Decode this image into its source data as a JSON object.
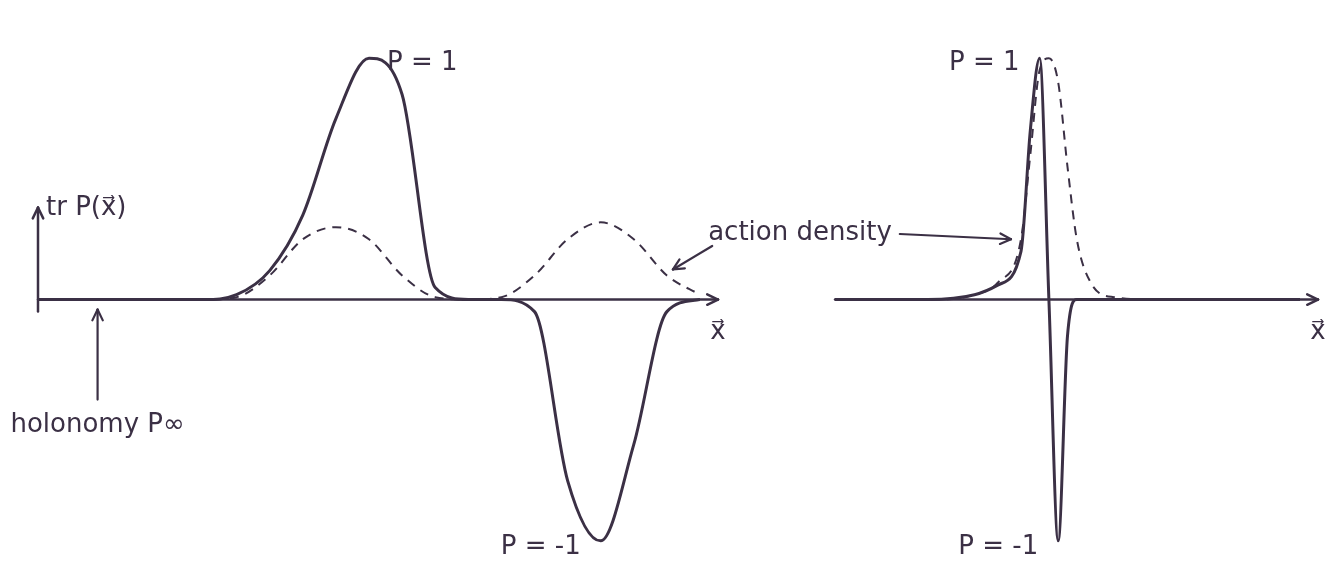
{
  "chart_data": [
    {
      "type": "line",
      "y_label": "tr P(x⃗)",
      "x_label": "x⃗",
      "xlim": [
        0,
        10
      ],
      "ylim": [
        -1.1,
        1.2
      ],
      "tick_labels": false,
      "grid": false,
      "x": [
        0,
        0.5,
        1,
        1.5,
        2,
        2.5,
        3,
        3.5,
        4,
        4.5,
        5,
        5.5,
        6,
        6.5,
        7,
        7.5,
        8,
        8.5,
        9,
        9.5,
        10
      ],
      "series": [
        {
          "color": "#3b3045",
          "line_style": "solid",
          "values": [
            0,
            0,
            0,
            0,
            0,
            0,
            0.02,
            0.12,
            0.35,
            0.75,
            1.0,
            0.85,
            0.05,
            0,
            0,
            -0.05,
            -0.75,
            -1.0,
            -0.6,
            -0.05,
            0
          ]
        },
        {
          "name": "action density",
          "color": "#3b3045",
          "line_style": "dashed",
          "values": [
            0,
            0,
            0,
            0,
            0,
            0,
            0.01,
            0.1,
            0.25,
            0.3,
            0.25,
            0.1,
            0.01,
            0,
            0.01,
            0.1,
            0.25,
            0.32,
            0.25,
            0.1,
            0.02
          ]
        }
      ],
      "annotations": [
        {
          "text": "P = 1",
          "x": 5,
          "y": 1.0
        },
        {
          "text": "P = -1",
          "x": 8.5,
          "y": -1.0
        },
        {
          "text": "holonomy P∞",
          "x": 0.9,
          "y": 0
        }
      ]
    },
    {
      "type": "line",
      "x_label": "x⃗",
      "xlim": [
        0,
        10
      ],
      "ylim": [
        -1.1,
        1.2
      ],
      "tick_labels": false,
      "grid": false,
      "x": [
        0,
        1,
        2,
        3,
        3.5,
        4,
        4.2,
        4.4,
        4.6,
        4.8,
        5.0,
        5.2,
        5.5,
        6,
        7,
        8,
        9,
        10
      ],
      "series": [
        {
          "color": "#3b3045",
          "line_style": "solid",
          "values": [
            0,
            0,
            0,
            0.02,
            0.06,
            0.2,
            0.7,
            1.0,
            0,
            -1.0,
            -0.15,
            0,
            0,
            0,
            0,
            0,
            0,
            0
          ]
        },
        {
          "name": "action density",
          "color": "#3b3045",
          "line_style": "dashed",
          "values": [
            0,
            0,
            0,
            0.02,
            0.07,
            0.25,
            0.6,
            0.95,
            1.0,
            0.9,
            0.55,
            0.25,
            0.07,
            0.01,
            0,
            0,
            0,
            0
          ]
        }
      ],
      "annotations": [
        {
          "text": "P = 1",
          "x": 4.4,
          "y": 1.0
        },
        {
          "text": "P = -1",
          "x": 4.8,
          "y": -1.0
        }
      ]
    }
  ]
}
